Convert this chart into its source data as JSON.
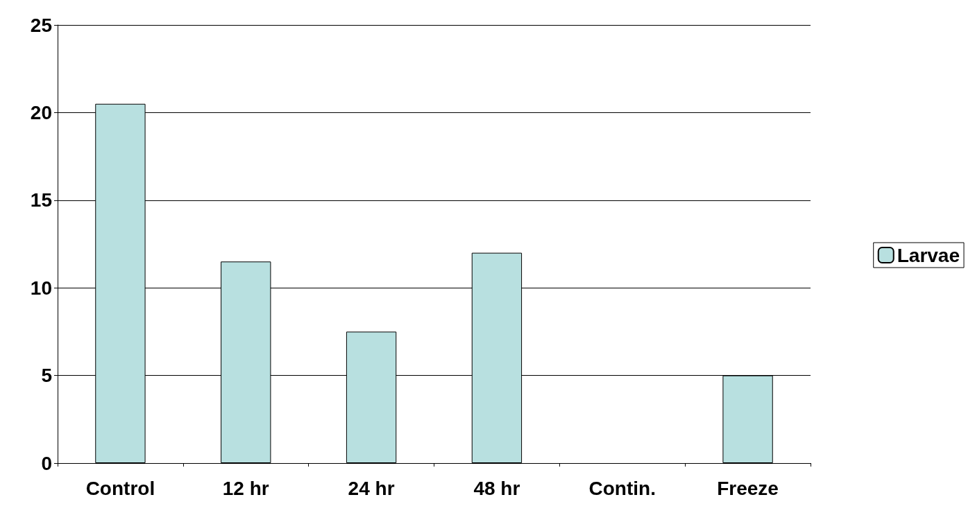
{
  "chart_data": {
    "type": "bar",
    "categories": [
      "Control",
      "12 hr",
      "24 hr",
      "48 hr",
      "Contin.",
      "Freeze"
    ],
    "series": [
      {
        "name": "Larvae",
        "color": "#b8e0e0",
        "values": [
          20.5,
          11.5,
          7.5,
          12,
          0,
          5
        ]
      }
    ],
    "ylim": [
      0,
      25
    ],
    "yticks": [
      0,
      5,
      10,
      15,
      20,
      25
    ],
    "grid": "y",
    "legend": "right"
  }
}
